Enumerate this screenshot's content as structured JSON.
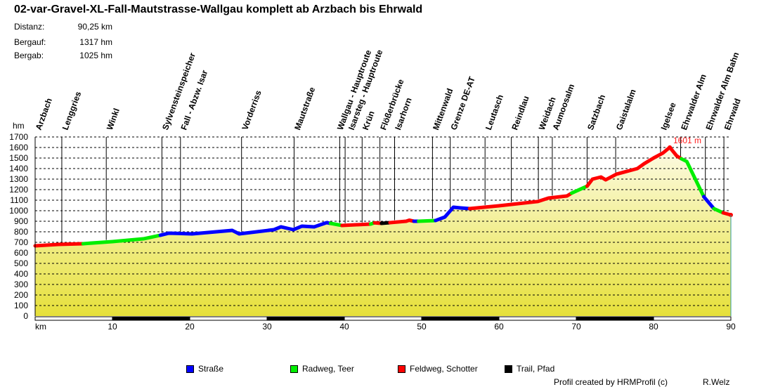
{
  "header": {
    "title": "02-var-Gravel-XL-Fall-Mautstrasse-Wallgau komplett ab Arzbach bis Ehrwald",
    "stats": [
      {
        "label": "Distanz:",
        "value": "90,25 km"
      },
      {
        "label": "Bergauf:",
        "value": "1317 hm"
      },
      {
        "label": "Bergab:",
        "value": "1025 hm"
      }
    ]
  },
  "chart_data": {
    "type": "area",
    "ylabel": "hm",
    "xlabel": "km",
    "xlim": [
      0,
      90
    ],
    "ylim": [
      0,
      1700
    ],
    "yticks": [
      "0",
      "100",
      "200",
      "300",
      "400",
      "500",
      "600",
      "700",
      "800",
      "900",
      "1000",
      "1100",
      "1200",
      "1300",
      "1400",
      "1500",
      "1600",
      "1700"
    ],
    "xticks": [
      "km",
      "10",
      "20",
      "30",
      "40",
      "50",
      "60",
      "70",
      "80",
      "90"
    ],
    "grid": true,
    "peak_label": "1601 m",
    "surface_colors": {
      "strasse": "#0000ff",
      "radweg": "#00ee00",
      "feldweg": "#ff0000",
      "trail": "#000000"
    },
    "segments": [
      {
        "surface": "feldweg",
        "points": [
          [
            0,
            667
          ],
          [
            3,
            680
          ],
          [
            6.2,
            687
          ]
        ]
      },
      {
        "surface": "radweg",
        "points": [
          [
            6.2,
            687
          ],
          [
            10,
            707
          ],
          [
            14,
            733
          ],
          [
            16.2,
            767
          ]
        ]
      },
      {
        "surface": "strasse",
        "points": [
          [
            16.2,
            767
          ],
          [
            17.3,
            787
          ],
          [
            20.3,
            780
          ],
          [
            25.5,
            813
          ],
          [
            26.4,
            780
          ],
          [
            30.9,
            820
          ],
          [
            31.8,
            847
          ],
          [
            33.4,
            820
          ],
          [
            34.5,
            853
          ],
          [
            36.1,
            847
          ],
          [
            37.7,
            887
          ],
          [
            38.2,
            880
          ]
        ]
      },
      {
        "surface": "radweg",
        "points": [
          [
            38.2,
            880
          ],
          [
            39.7,
            860
          ]
        ]
      },
      {
        "surface": "feldweg",
        "points": [
          [
            39.7,
            860
          ],
          [
            43.4,
            873
          ]
        ]
      },
      {
        "surface": "radweg",
        "points": [
          [
            43.4,
            873
          ],
          [
            43.9,
            885
          ]
        ]
      },
      {
        "surface": "feldweg",
        "points": [
          [
            43.9,
            885
          ],
          [
            44.8,
            880
          ]
        ]
      },
      {
        "surface": "trail",
        "points": [
          [
            44.8,
            880
          ],
          [
            45.9,
            887
          ]
        ]
      },
      {
        "surface": "feldweg",
        "points": [
          [
            45.9,
            887
          ],
          [
            48,
            900
          ],
          [
            48.4,
            910
          ],
          [
            49,
            900
          ]
        ]
      },
      {
        "surface": "strasse",
        "points": [
          [
            49,
            900
          ],
          [
            49.6,
            900
          ]
        ]
      },
      {
        "surface": "radweg",
        "points": [
          [
            49.6,
            900
          ],
          [
            51.8,
            907
          ]
        ]
      },
      {
        "surface": "strasse",
        "points": [
          [
            51.8,
            907
          ],
          [
            53,
            940
          ],
          [
            54.1,
            1033
          ],
          [
            55,
            1027
          ],
          [
            56.2,
            1020
          ]
        ]
      },
      {
        "surface": "feldweg",
        "points": [
          [
            56.2,
            1020
          ],
          [
            60,
            1047
          ],
          [
            65,
            1087
          ],
          [
            66.4,
            1120
          ],
          [
            68.8,
            1140
          ],
          [
            69.4,
            1167
          ]
        ]
      },
      {
        "surface": "radweg",
        "points": [
          [
            69.4,
            1167
          ],
          [
            71.4,
            1233
          ]
        ]
      },
      {
        "surface": "feldweg",
        "points": [
          [
            71.4,
            1233
          ],
          [
            72.1,
            1300
          ],
          [
            73.2,
            1320
          ],
          [
            73.8,
            1293
          ],
          [
            75.2,
            1347
          ],
          [
            77.9,
            1400
          ],
          [
            78.8,
            1447
          ],
          [
            80,
            1500
          ],
          [
            81.2,
            1547
          ],
          [
            82.1,
            1601
          ],
          [
            83,
            1520
          ],
          [
            83.6,
            1493
          ]
        ]
      },
      {
        "surface": "radweg",
        "points": [
          [
            83.6,
            1493
          ],
          [
            84.3,
            1467
          ],
          [
            86.5,
            1133
          ]
        ]
      },
      {
        "surface": "strasse",
        "points": [
          [
            86.5,
            1133
          ],
          [
            87.8,
            1020
          ]
        ]
      },
      {
        "surface": "radweg",
        "points": [
          [
            87.8,
            1020
          ],
          [
            89,
            980
          ]
        ]
      },
      {
        "surface": "feldweg",
        "points": [
          [
            89,
            980
          ],
          [
            90,
            960
          ]
        ]
      }
    ],
    "waypoints": [
      {
        "name": "Arzbach",
        "km": 0
      },
      {
        "name": "Lenggries",
        "km": 3.45
      },
      {
        "name": "Winkl",
        "km": 9.2
      },
      {
        "name": "Sylvensteinspeicher",
        "km": 16.4
      },
      {
        "name": "Fall - Abzw. Isar",
        "km": 18.8
      },
      {
        "name": "Vorderriss",
        "km": 26.7
      },
      {
        "name": "Mautstraße",
        "km": 33.5
      },
      {
        "name": "Wallgau - Hauptroute",
        "km": 39.4
      },
      {
        "name": "Isarsteg - Hauptroute",
        "km": 40.1
      },
      {
        "name": "Krün",
        "km": 42.3
      },
      {
        "name": "Flößerbrücke",
        "km": 44.6
      },
      {
        "name": "Isarhorn",
        "km": 46.5
      },
      {
        "name": "Mittenwald",
        "km": 51.4
      },
      {
        "name": "Grenze DE-AT",
        "km": 53.7
      },
      {
        "name": "Leutasch",
        "km": 58.2
      },
      {
        "name": "Reindlau",
        "km": 61.6
      },
      {
        "name": "Weidach",
        "km": 65.1
      },
      {
        "name": "Aumoosalm",
        "km": 66.9
      },
      {
        "name": "Satzbach",
        "km": 71.4
      },
      {
        "name": "Gaistalalm",
        "km": 75.1
      },
      {
        "name": "Igelsee",
        "km": 80.9
      },
      {
        "name": "Ehrwalder Alm",
        "km": 83.5
      },
      {
        "name": "Ehrwalder Alm Bahn",
        "km": 86.7
      },
      {
        "name": "Ehrwald",
        "km": 89.1
      }
    ],
    "legend": [
      {
        "label": "Straße",
        "color": "#0000ff"
      },
      {
        "label": "Radweg, Teer",
        "color": "#00ee00"
      },
      {
        "label": "Feldweg, Schotter",
        "color": "#ff0000"
      },
      {
        "label": "Trail, Pfad",
        "color": "#000000"
      }
    ]
  },
  "footer": {
    "created": "Profil created by HRMProfil (c)",
    "author": "R.Welz"
  }
}
